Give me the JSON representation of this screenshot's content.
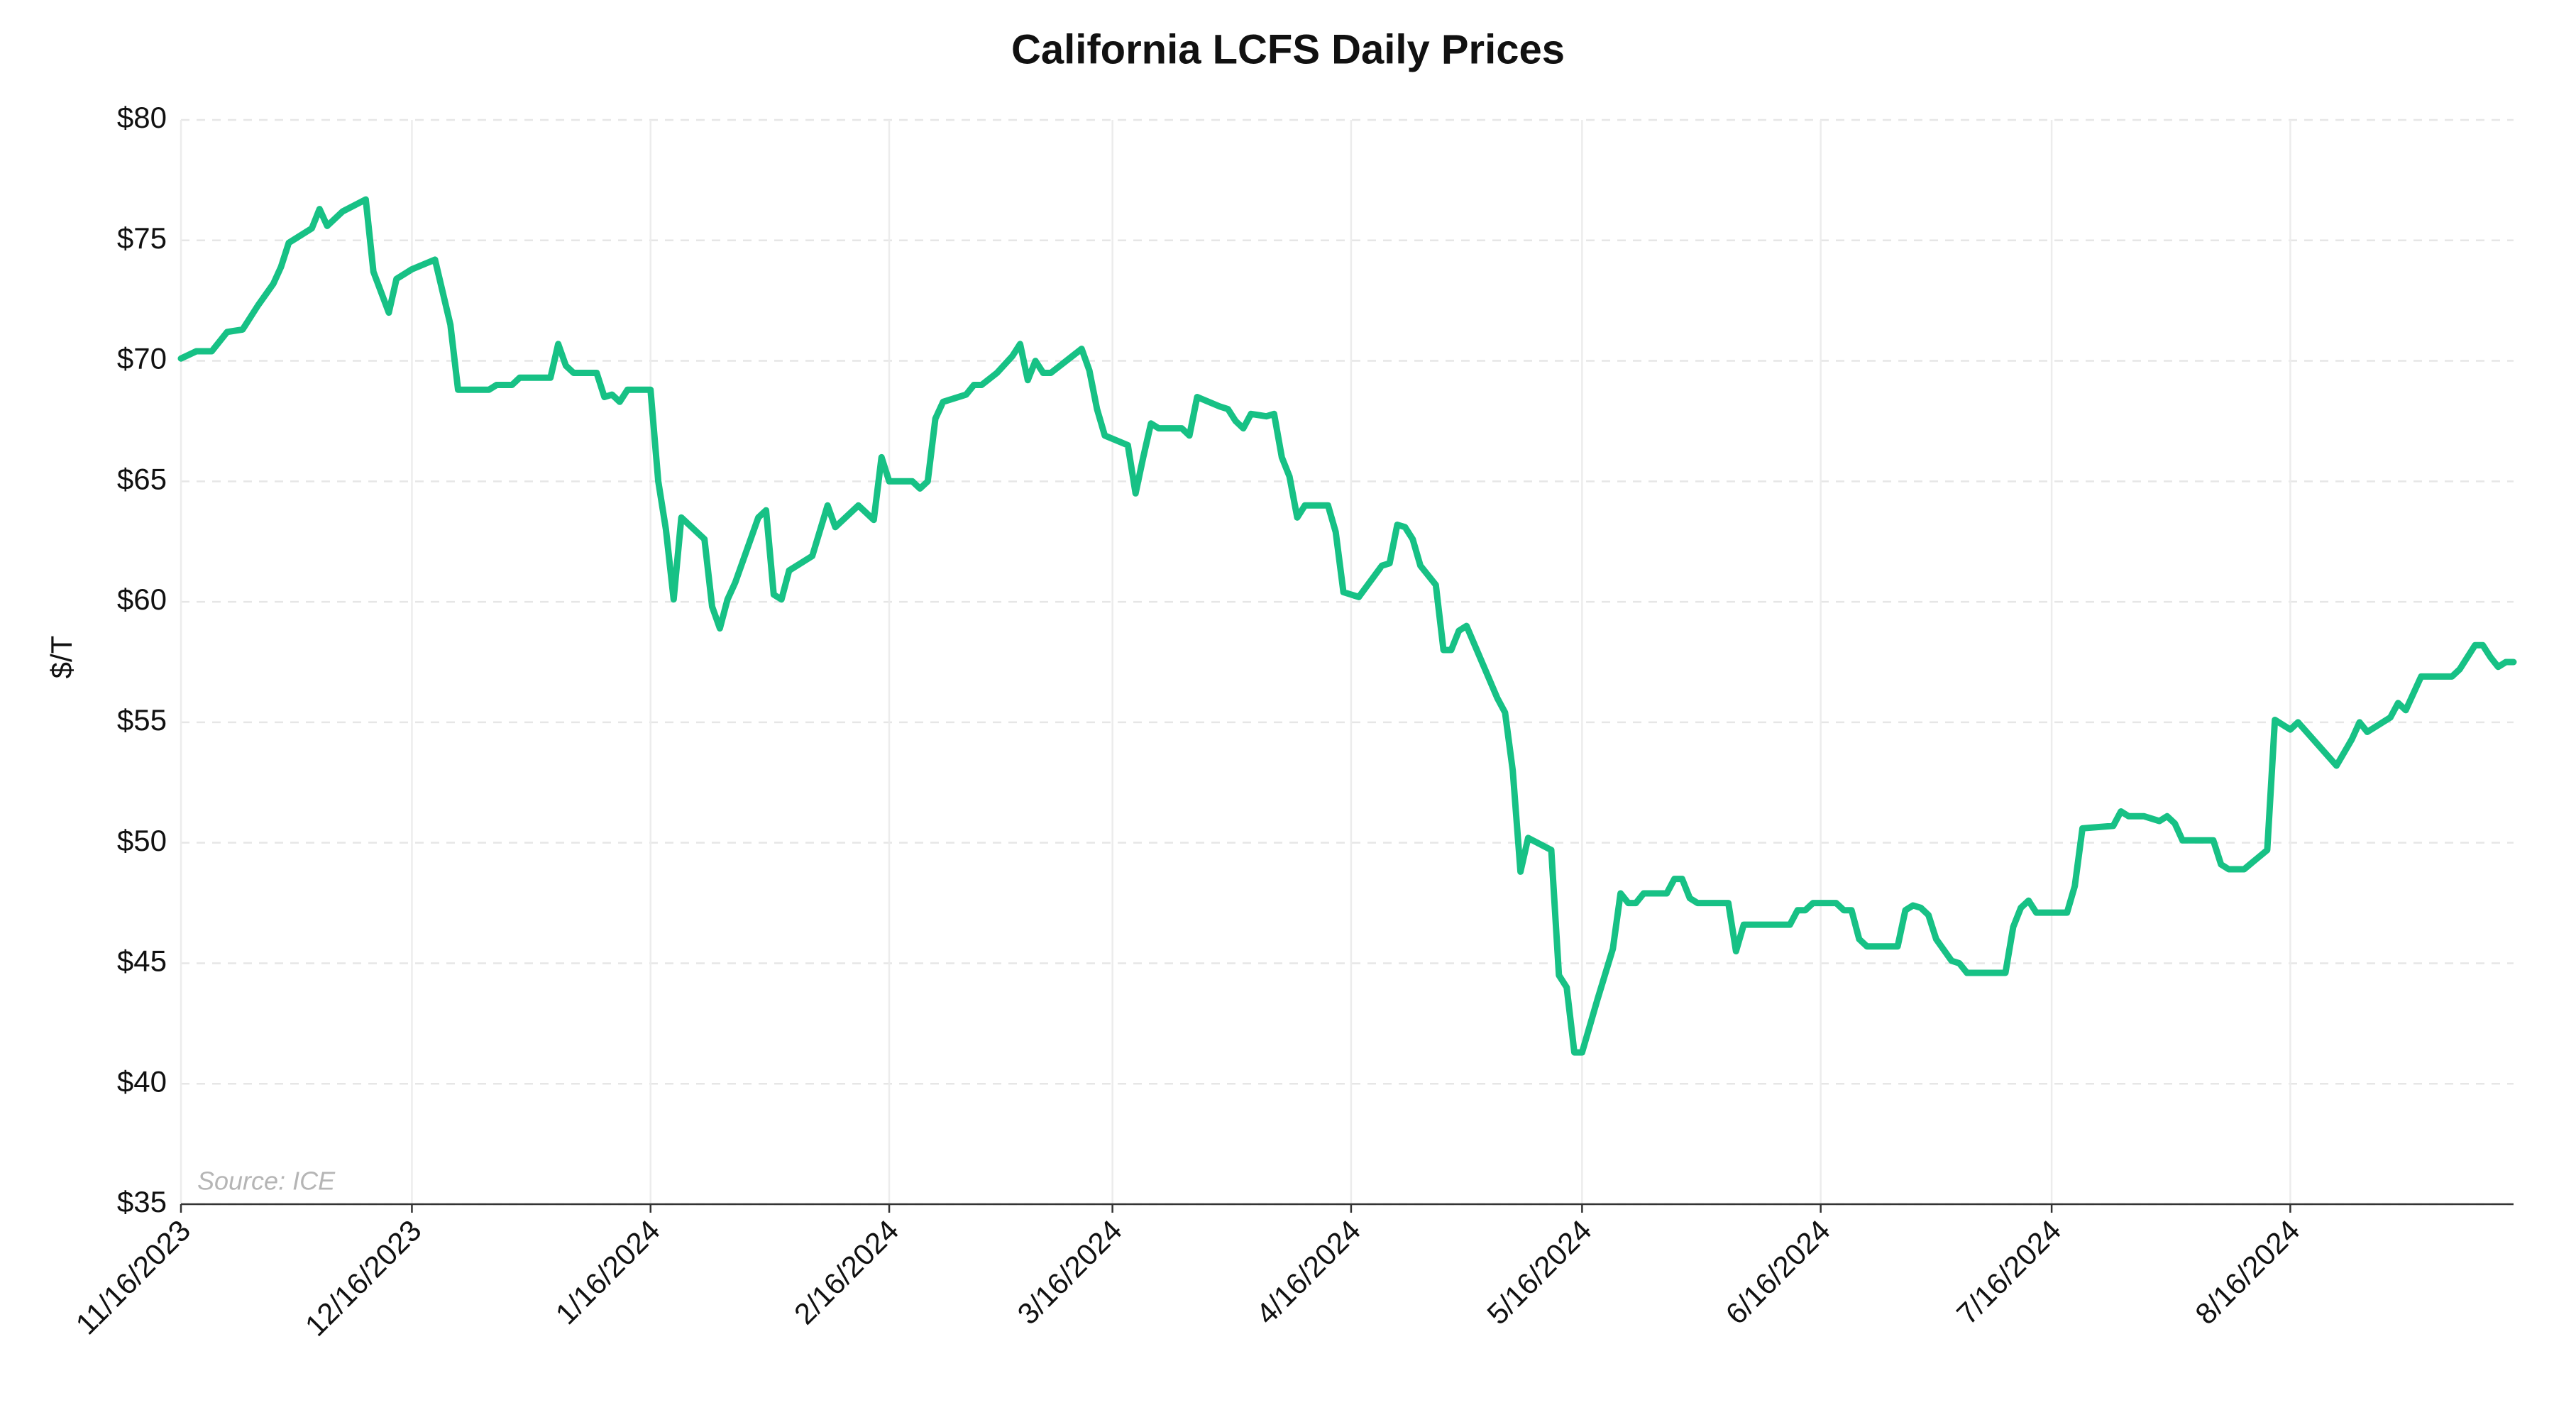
{
  "chart_data": {
    "type": "line",
    "title": "California LCFS Daily Prices",
    "ylabel": "$/T",
    "source": "Source: ICE",
    "grid": true,
    "xlim": [
      "11/16/2023",
      "9/14/2024"
    ],
    "xticks": [
      "11/16/2023",
      "12/16/2023",
      "1/16/2024",
      "2/16/2024",
      "3/16/2024",
      "4/16/2024",
      "5/16/2024",
      "6/16/2024",
      "7/16/2024",
      "8/16/2024"
    ],
    "ylim": [
      35,
      80
    ],
    "yticks": [
      {
        "value": 35,
        "label": "$35"
      },
      {
        "value": 40,
        "label": "$40"
      },
      {
        "value": 45,
        "label": "$45"
      },
      {
        "value": 50,
        "label": "$50"
      },
      {
        "value": 55,
        "label": "$55"
      },
      {
        "value": 60,
        "label": "$60"
      },
      {
        "value": 65,
        "label": "$65"
      },
      {
        "value": 70,
        "label": "$70"
      },
      {
        "value": 75,
        "label": "$75"
      },
      {
        "value": 80,
        "label": "$80"
      }
    ],
    "x": [
      "11/16/2023",
      "11/18/2023",
      "11/20/2023",
      "11/22/2023",
      "11/24/2023",
      "11/26/2023",
      "11/28/2023",
      "11/29/2023",
      "11/30/2023",
      "12/3/2023",
      "12/4/2023",
      "12/5/2023",
      "12/7/2023",
      "12/10/2023",
      "12/11/2023",
      "12/13/2023",
      "12/14/2023",
      "12/16/2023",
      "12/19/2023",
      "12/21/2023",
      "12/22/2023",
      "12/26/2023",
      "12/27/2023",
      "12/29/2023",
      "12/30/2023",
      "1/3/2024",
      "1/4/2024",
      "1/5/2024",
      "1/6/2024",
      "1/9/2024",
      "1/10/2024",
      "1/11/2024",
      "1/12/2024",
      "1/13/2024",
      "1/16/2024",
      "1/17/2024",
      "1/18/2024",
      "1/19/2024",
      "1/20/2024",
      "1/23/2024",
      "1/24/2024",
      "1/25/2024",
      "1/26/2024",
      "1/27/2024",
      "1/30/2024",
      "1/31/2024",
      "2/1/2024",
      "2/2/2024",
      "2/3/2024",
      "2/6/2024",
      "2/8/2024",
      "2/9/2024",
      "2/12/2024",
      "2/14/2024",
      "2/15/2024",
      "2/16/2024",
      "2/19/2024",
      "2/20/2024",
      "2/21/2024",
      "2/22/2024",
      "2/23/2024",
      "2/26/2024",
      "2/27/2024",
      "2/28/2024",
      "3/1/2024",
      "3/3/2024",
      "3/4/2024",
      "3/5/2024",
      "3/6/2024",
      "3/7/2024",
      "3/8/2024",
      "3/10/2024",
      "3/12/2024",
      "3/13/2024",
      "3/14/2024",
      "3/15/2024",
      "3/18/2024",
      "3/19/2024",
      "3/20/2024",
      "3/21/2024",
      "3/22/2024",
      "3/25/2024",
      "3/26/2024",
      "3/27/2024",
      "3/30/2024",
      "3/31/2024",
      "4/1/2024",
      "4/2/2024",
      "4/3/2024",
      "4/5/2024",
      "4/6/2024",
      "4/7/2024",
      "4/8/2024",
      "4/9/2024",
      "4/10/2024",
      "4/13/2024",
      "4/14/2024",
      "4/15/2024",
      "4/17/2024",
      "4/20/2024",
      "4/21/2024",
      "4/22/2024",
      "4/23/2024",
      "4/24/2024",
      "4/25/2024",
      "4/27/2024",
      "4/28/2024",
      "4/29/2024",
      "4/30/2024",
      "5/1/2024",
      "5/3/2024",
      "5/5/2024",
      "5/6/2024",
      "5/7/2024",
      "5/8/2024",
      "5/9/2024",
      "5/12/2024",
      "5/13/2024",
      "5/14/2024",
      "5/15/2024",
      "5/16/2024",
      "5/18/2024",
      "5/20/2024",
      "5/21/2024",
      "5/22/2024",
      "5/23/2024",
      "5/24/2024",
      "5/27/2024",
      "5/28/2024",
      "5/29/2024",
      "5/30/2024",
      "5/31/2024",
      "6/4/2024",
      "6/5/2024",
      "6/6/2024",
      "6/12/2024",
      "6/13/2024",
      "6/14/2024",
      "6/15/2024",
      "6/18/2024",
      "6/19/2024",
      "6/20/2024",
      "6/21/2024",
      "6/22/2024",
      "6/26/2024",
      "6/27/2024",
      "6/28/2024",
      "6/29/2024",
      "6/30/2024",
      "7/1/2024",
      "7/3/2024",
      "7/4/2024",
      "7/5/2024",
      "7/10/2024",
      "7/11/2024",
      "7/12/2024",
      "7/13/2024",
      "7/14/2024",
      "7/18/2024",
      "7/19/2024",
      "7/20/2024",
      "7/24/2024",
      "7/25/2024",
      "7/26/2024",
      "7/28/2024",
      "7/30/2024",
      "7/31/2024",
      "8/1/2024",
      "8/2/2024",
      "8/6/2024",
      "8/7/2024",
      "8/8/2024",
      "8/10/2024",
      "8/13/2024",
      "8/14/2024",
      "8/16/2024",
      "8/17/2024",
      "8/22/2024",
      "8/24/2024",
      "8/25/2024",
      "8/26/2024",
      "8/29/2024",
      "8/30/2024",
      "8/31/2024",
      "9/2/2024",
      "9/6/2024",
      "9/7/2024",
      "9/9/2024",
      "9/10/2024",
      "9/11/2024",
      "9/12/2024",
      "9/13/2024",
      "9/14/2024"
    ],
    "series": [
      {
        "name": "LCFS",
        "color": "#17c185",
        "values": [
          70.1,
          70.4,
          70.4,
          71.2,
          71.3,
          72.3,
          73.2,
          73.9,
          74.9,
          75.5,
          76.3,
          75.6,
          76.2,
          76.7,
          73.7,
          72.0,
          73.4,
          73.8,
          74.2,
          71.5,
          68.8,
          68.8,
          69.0,
          69.0,
          69.3,
          69.3,
          70.7,
          69.8,
          69.5,
          69.5,
          68.5,
          68.6,
          68.3,
          68.8,
          68.8,
          65.0,
          63.0,
          60.1,
          63.5,
          62.6,
          59.8,
          58.9,
          60.1,
          60.8,
          63.5,
          63.8,
          60.3,
          60.1,
          61.3,
          61.9,
          64.0,
          63.1,
          64.0,
          63.4,
          66.0,
          65.0,
          65.0,
          64.7,
          65.0,
          67.6,
          68.3,
          68.6,
          69.0,
          69.0,
          69.5,
          70.2,
          70.7,
          69.2,
          70.0,
          69.5,
          69.5,
          70.0,
          70.5,
          69.6,
          68.0,
          66.9,
          66.5,
          64.5,
          66.0,
          67.4,
          67.2,
          67.2,
          66.9,
          68.5,
          68.1,
          68.0,
          67.5,
          67.2,
          67.8,
          67.7,
          67.8,
          66.0,
          65.2,
          63.5,
          64.0,
          64.0,
          62.9,
          60.4,
          60.2,
          61.5,
          61.6,
          63.2,
          63.1,
          62.6,
          61.5,
          60.7,
          58.0,
          58.0,
          58.8,
          59.0,
          57.5,
          56.0,
          55.4,
          53.0,
          48.8,
          50.2,
          49.7,
          44.5,
          44.0,
          41.3,
          41.3,
          43.5,
          45.6,
          47.9,
          47.5,
          47.5,
          47.9,
          47.9,
          48.5,
          48.5,
          47.7,
          47.5,
          47.5,
          45.5,
          46.6,
          46.6,
          47.2,
          47.2,
          47.5,
          47.5,
          47.2,
          47.2,
          46.0,
          45.7,
          45.7,
          47.2,
          47.4,
          47.3,
          47.0,
          46.0,
          45.1,
          45.0,
          44.6,
          44.6,
          46.5,
          47.3,
          47.6,
          47.1,
          47.1,
          48.2,
          50.6,
          50.7,
          51.3,
          51.1,
          51.1,
          50.9,
          51.1,
          50.8,
          50.1,
          50.1,
          49.1,
          48.9,
          48.9,
          49.7,
          55.1,
          54.7,
          55.0,
          53.2,
          54.3,
          55.0,
          54.6,
          55.2,
          55.8,
          55.5,
          56.9,
          56.9,
          57.2,
          58.2,
          58.2,
          57.7,
          57.3,
          57.5,
          57.5
        ]
      }
    ]
  }
}
